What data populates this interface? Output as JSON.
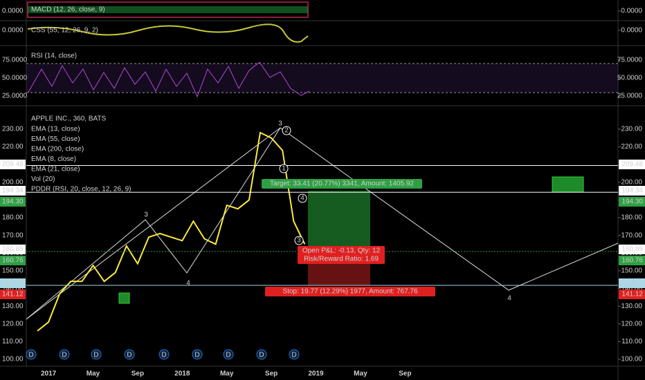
{
  "chart_data": [
    {
      "type": "indicator",
      "title": "MACD (12, 26, close, 9)",
      "yticks": [
        {
          "value": 0,
          "label": "0.0000"
        }
      ]
    },
    {
      "type": "indicator",
      "title": "CSS (55, 12, 26, 9, 2)",
      "yticks": [
        {
          "value": 0,
          "label": "0.0000"
        }
      ]
    },
    {
      "type": "indicator",
      "title": "RSI (14, close)",
      "ylim": [
        12.5,
        91.3
      ],
      "yticks": [
        {
          "value": 75,
          "label": "75.0000"
        },
        {
          "value": 50,
          "label": "50.0000"
        },
        {
          "value": 25,
          "label": "25.0000"
        }
      ]
    },
    {
      "type": "line",
      "title": "APPLE INC., 360, BATS",
      "legend": [
        "EMA (13, close)",
        "EMA (55, close)",
        "EMA (200, close)",
        "EMA (8, close)",
        "EMA (21, close)",
        "Vol (20)",
        "PDDR (RSI, 20, close, 12, 26, 9)"
      ],
      "categories": [
        null,
        "2017",
        null,
        null,
        null,
        "May",
        null,
        null,
        null,
        "Sep",
        null,
        null,
        null,
        "2018",
        null,
        null,
        null,
        "May",
        null,
        null,
        null,
        "Sep",
        null,
        null,
        null,
        "2019",
        null,
        null,
        null,
        "May",
        null,
        null,
        null,
        "Sep",
        null
      ],
      "values": [
        116,
        121,
        137,
        144,
        144,
        153,
        144,
        149,
        164,
        154,
        169,
        171,
        169,
        167,
        178,
        168,
        165,
        187,
        185,
        190,
        228,
        225,
        218,
        178,
        165,
        null,
        null,
        null,
        null,
        null,
        null,
        null,
        null,
        null,
        null
      ],
      "color": "#ffeb3b",
      "ylim": [
        96.1,
        240.5
      ],
      "yticks": [
        {
          "value": 100,
          "label": "100.00"
        },
        {
          "value": 110,
          "label": "110.00"
        },
        {
          "value": 120,
          "label": "120.00"
        },
        {
          "value": 130,
          "label": "130.00"
        },
        {
          "value": 140,
          "label": "140.00"
        },
        {
          "value": 150,
          "label": "150.00"
        },
        {
          "value": 160,
          "label": "160.00"
        },
        {
          "value": 170,
          "label": "170.00"
        },
        {
          "value": 180,
          "label": "180.00"
        },
        {
          "value": 190,
          "label": "190.00"
        },
        {
          "value": 200,
          "label": "200.00"
        },
        {
          "value": 210,
          "label": "210.00"
        },
        {
          "value": 220,
          "label": "220.00"
        },
        {
          "value": 230,
          "label": "230.00"
        }
      ],
      "price_labels": [
        209.48,
        194.34,
        {
          "value": 194.3,
          "label": "194.30"
        },
        160.89,
        160.76,
        141.75,
        141.12
      ],
      "annotations": [
        "Target: 33.41 (20.77%) 3341, Amount: 1405.92",
        "Open P&L: -0.13, Qty: 12",
        "Risk/Reward Ratio: 1.69",
        "Stop: 19.77 (12.29%) 1977, Amount: 767.76"
      ],
      "wave_labels": [
        "3",
        "4",
        "3",
        "2",
        "1",
        "4",
        "3",
        "4"
      ],
      "dividends": [
        "D",
        "D",
        "D",
        "D",
        "D",
        "D",
        "D",
        "D",
        "D"
      ]
    }
  ]
}
